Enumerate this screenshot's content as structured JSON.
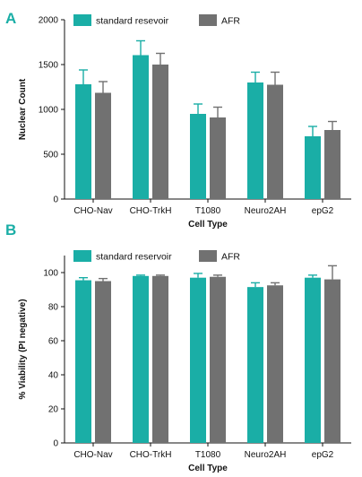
{
  "colors": {
    "standard": "#1aaea6",
    "afr": "#717171",
    "panel_label": "#1aaea6"
  },
  "chart_data": [
    {
      "type": "bar",
      "panel_label": "A",
      "categories": [
        "CHO-Nav",
        "CHO-TrkH",
        "T1080",
        "Neuro2AH",
        "epG2"
      ],
      "series": [
        {
          "name": "standard resevoir",
          "values": [
            1280,
            1605,
            950,
            1300,
            700
          ],
          "errors": [
            160,
            160,
            110,
            115,
            110
          ]
        },
        {
          "name": "AFR",
          "values": [
            1185,
            1500,
            910,
            1275,
            770
          ],
          "errors": [
            125,
            125,
            115,
            140,
            95
          ]
        }
      ],
      "xlabel": "Cell Type",
      "ylabel": "Nuclear Count",
      "ylim": [
        0,
        2000
      ],
      "yticks": [
        0,
        500,
        1000,
        1500,
        2000
      ],
      "legend": "top-left",
      "grid": false
    },
    {
      "type": "bar",
      "panel_label": "B",
      "categories": [
        "CHO-Nav",
        "CHO-TrkH",
        "T1080",
        "Neuro2AH",
        "epG2"
      ],
      "series": [
        {
          "name": "standard reservoir",
          "values": [
            95.5,
            98,
            97,
            91.5,
            97
          ],
          "errors": [
            1.5,
            0.5,
            2.5,
            2.5,
            1.5
          ]
        },
        {
          "name": "AFR",
          "values": [
            95,
            98,
            97.5,
            92.5,
            96
          ],
          "errors": [
            1.5,
            0.5,
            1,
            1.5,
            8
          ]
        }
      ],
      "xlabel": "Cell Type",
      "ylabel": "% Viability (PI negative)",
      "ylim": [
        0,
        110
      ],
      "yticks": [
        0,
        20,
        40,
        60,
        80,
        100
      ],
      "legend": "top-left",
      "grid": false
    }
  ]
}
